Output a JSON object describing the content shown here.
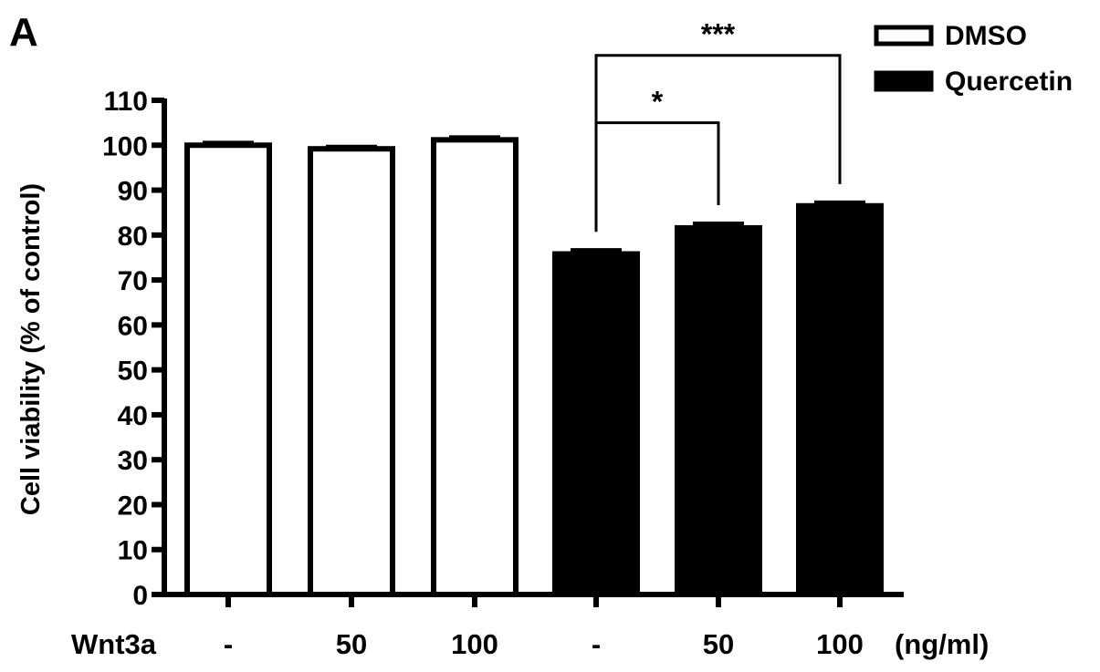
{
  "panel_label": "A",
  "chart_data": {
    "type": "bar",
    "title": "",
    "ylabel": "Cell viability (% of control)",
    "xlabel": "",
    "ylim": [
      0,
      110
    ],
    "yticks": [
      0,
      10,
      20,
      30,
      40,
      50,
      60,
      70,
      80,
      90,
      100,
      110
    ],
    "row_label": "Wnt3a",
    "unit_label": "(ng/ml)",
    "categories": [
      "-",
      "50",
      "100",
      "-",
      "50",
      "100"
    ],
    "values": [
      100,
      99.2,
      101.2,
      75.8,
      81.6,
      86.5
    ],
    "errors": [
      0.6,
      0.5,
      0.6,
      0.9,
      1.0,
      0.8
    ],
    "bar_series": [
      "DMSO",
      "DMSO",
      "DMSO",
      "Quercetin",
      "Quercetin",
      "Quercetin"
    ],
    "series": [
      {
        "name": "DMSO",
        "color": "#ffffff",
        "stroke": "#000000"
      },
      {
        "name": "Quercetin",
        "color": "#000000",
        "stroke": "#000000"
      }
    ],
    "legend_position": "top-right",
    "grid": false,
    "annotations": [
      {
        "from": 3,
        "to": 4,
        "label": "*",
        "level": 105
      },
      {
        "from": 3,
        "to": 5,
        "label": "***",
        "level": 120
      }
    ]
  }
}
